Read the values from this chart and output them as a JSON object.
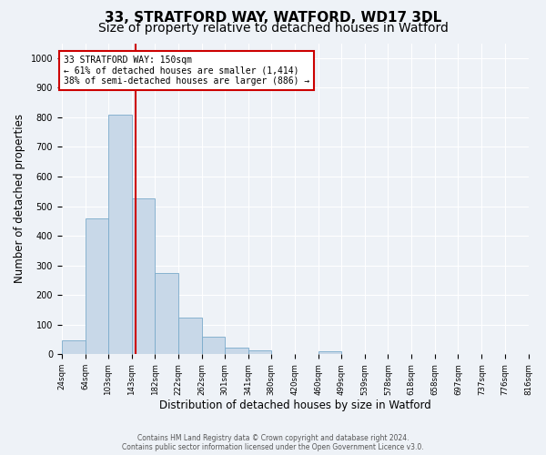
{
  "title1": "33, STRATFORD WAY, WATFORD, WD17 3DL",
  "title2": "Size of property relative to detached houses in Watford",
  "xlabel": "Distribution of detached houses by size in Watford",
  "ylabel": "Number of detached properties",
  "bar_color": "#c8d8e8",
  "bar_edge_color": "#7aaacb",
  "background_color": "#eef2f7",
  "grid_color": "#ffffff",
  "vline_value": 150,
  "vline_color": "#cc0000",
  "annotation_text_line1": "33 STRATFORD WAY: 150sqm",
  "annotation_text_line2": "← 61% of detached houses are smaller (1,414)",
  "annotation_text_line3": "38% of semi-detached houses are larger (886) →",
  "annotation_box_color": "#cc0000",
  "bin_edges": [
    24,
    64,
    103,
    143,
    182,
    222,
    262,
    301,
    341,
    380,
    420,
    460,
    499,
    539,
    578,
    618,
    658,
    697,
    737,
    776,
    816
  ],
  "bin_labels": [
    "24sqm",
    "64sqm",
    "103sqm",
    "143sqm",
    "182sqm",
    "222sqm",
    "262sqm",
    "301sqm",
    "341sqm",
    "380sqm",
    "420sqm",
    "460sqm",
    "499sqm",
    "539sqm",
    "578sqm",
    "618sqm",
    "658sqm",
    "697sqm",
    "737sqm",
    "776sqm",
    "816sqm"
  ],
  "bar_heights": [
    47,
    460,
    810,
    525,
    275,
    125,
    58,
    22,
    12,
    0,
    0,
    10,
    0,
    0,
    0,
    0,
    0,
    0,
    0,
    0
  ],
  "ylim": [
    0,
    1050
  ],
  "yticks": [
    0,
    100,
    200,
    300,
    400,
    500,
    600,
    700,
    800,
    900,
    1000
  ],
  "footer_line1": "Contains HM Land Registry data © Crown copyright and database right 2024.",
  "footer_line2": "Contains public sector information licensed under the Open Government Licence v3.0.",
  "title1_fontsize": 11,
  "title2_fontsize": 10,
  "xlabel_fontsize": 8.5,
  "ylabel_fontsize": 8.5,
  "tick_fontsize": 7,
  "footer_fontsize": 5.5
}
